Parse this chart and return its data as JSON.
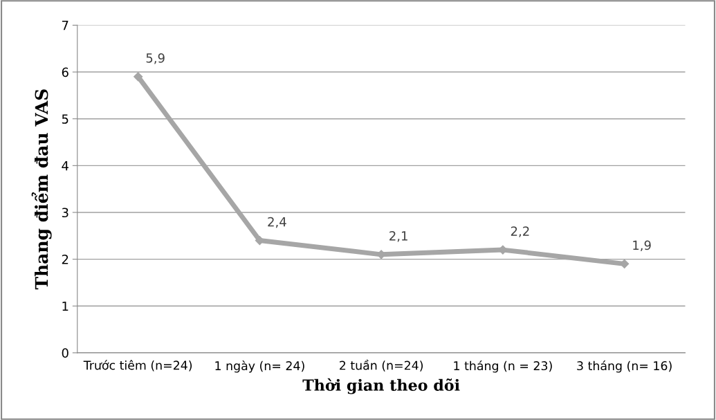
{
  "chart_data": {
    "type": "line",
    "xlabel": "Thời gian theo dõi",
    "ylabel": "Thang điểm đau VAS",
    "categories": [
      "Trước tiêm (n=24)",
      "1 ngày (n= 24)",
      "2 tuần (n=24)",
      "1 tháng (n = 23)",
      "3 tháng (n= 16)"
    ],
    "series": [
      {
        "color": "#a6a6a6",
        "values": [
          5.9,
          2.4,
          2.1,
          2.2,
          1.9
        ],
        "value_labels": [
          "5,9",
          "2,4",
          "2,1",
          "2,2",
          "1,9"
        ]
      }
    ],
    "ylim": [
      0,
      7
    ],
    "yticks": [
      0,
      1,
      2,
      3,
      4,
      5,
      6,
      7
    ],
    "grid": "y",
    "marker": "diamond",
    "line_style": "solid",
    "legend": false
  }
}
